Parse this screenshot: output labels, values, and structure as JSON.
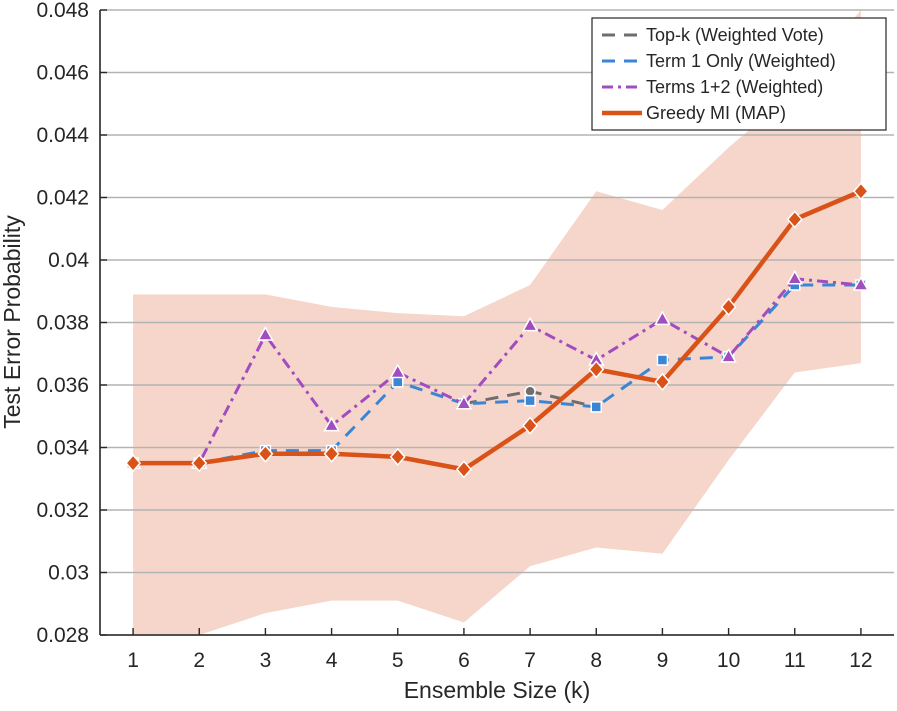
{
  "chart_data": {
    "type": "line",
    "title": "",
    "xlabel": "Ensemble Size (k)",
    "ylabel": "Test Error Probability",
    "xlim": [
      0.5,
      12.5
    ],
    "ylim": [
      0.028,
      0.048
    ],
    "grid": "horizontal",
    "legend_position": "top-right",
    "x_ticks": [
      "1",
      "2",
      "3",
      "4",
      "5",
      "6",
      "7",
      "8",
      "9",
      "10",
      "11",
      "12"
    ],
    "y_ticks": [
      "0.028",
      "0.03",
      "0.032",
      "0.034",
      "0.036",
      "0.038",
      "0.04",
      "0.042",
      "0.044",
      "0.046",
      "0.048"
    ],
    "band": {
      "name": "Greedy MI (MAP) interval",
      "color": "#f6d6cb",
      "x": [
        1,
        2,
        3,
        4,
        5,
        6,
        7,
        8,
        9,
        10,
        11,
        12
      ],
      "upper": [
        0.0389,
        0.0389,
        0.0389,
        0.0385,
        0.0383,
        0.0382,
        0.0392,
        0.0422,
        0.0416,
        0.0436,
        0.0454,
        0.048
      ],
      "lower": [
        0.028,
        0.028,
        0.0287,
        0.0291,
        0.0291,
        0.0284,
        0.0302,
        0.0308,
        0.0306,
        0.0336,
        0.0364,
        0.0367
      ]
    },
    "series": [
      {
        "name": "Top-k (Weighted Vote)",
        "color": "#6e6e6e",
        "dash": "13,9",
        "width": 3,
        "marker": "circle",
        "x": [
          6,
          7,
          8
        ],
        "values": [
          0.0354,
          0.0358,
          0.0353
        ]
      },
      {
        "name": "Term 1 Only (Weighted)",
        "color": "#3a86d4",
        "dash": "13,9",
        "width": 3,
        "marker": "square",
        "x": [
          1,
          2,
          3,
          4,
          5,
          6,
          7,
          8,
          9,
          10,
          11,
          12
        ],
        "values": [
          0.0335,
          0.0335,
          0.0339,
          0.0339,
          0.0361,
          0.0354,
          0.0355,
          0.0353,
          0.0368,
          0.0369,
          0.0392,
          0.0392
        ]
      },
      {
        "name": "Terms 1+2 (Weighted)",
        "color": "#a24dbf",
        "dash": "11,5,3,5",
        "width": 3,
        "marker": "triangle",
        "x": [
          1,
          2,
          3,
          4,
          5,
          6,
          7,
          8,
          9,
          10,
          11,
          12
        ],
        "values": [
          0.0335,
          0.0335,
          0.0376,
          0.0347,
          0.0364,
          0.0354,
          0.0379,
          0.0368,
          0.0381,
          0.0369,
          0.0394,
          0.0392
        ]
      },
      {
        "name": "Greedy MI (MAP)",
        "color": "#d95319",
        "dash": "",
        "width": 4.5,
        "marker": "diamond",
        "x": [
          1,
          2,
          3,
          4,
          5,
          6,
          7,
          8,
          9,
          10,
          11,
          12
        ],
        "values": [
          0.0335,
          0.0335,
          0.0338,
          0.0338,
          0.0337,
          0.0333,
          0.0347,
          0.0365,
          0.0361,
          0.0385,
          0.0413,
          0.0422
        ]
      }
    ]
  }
}
